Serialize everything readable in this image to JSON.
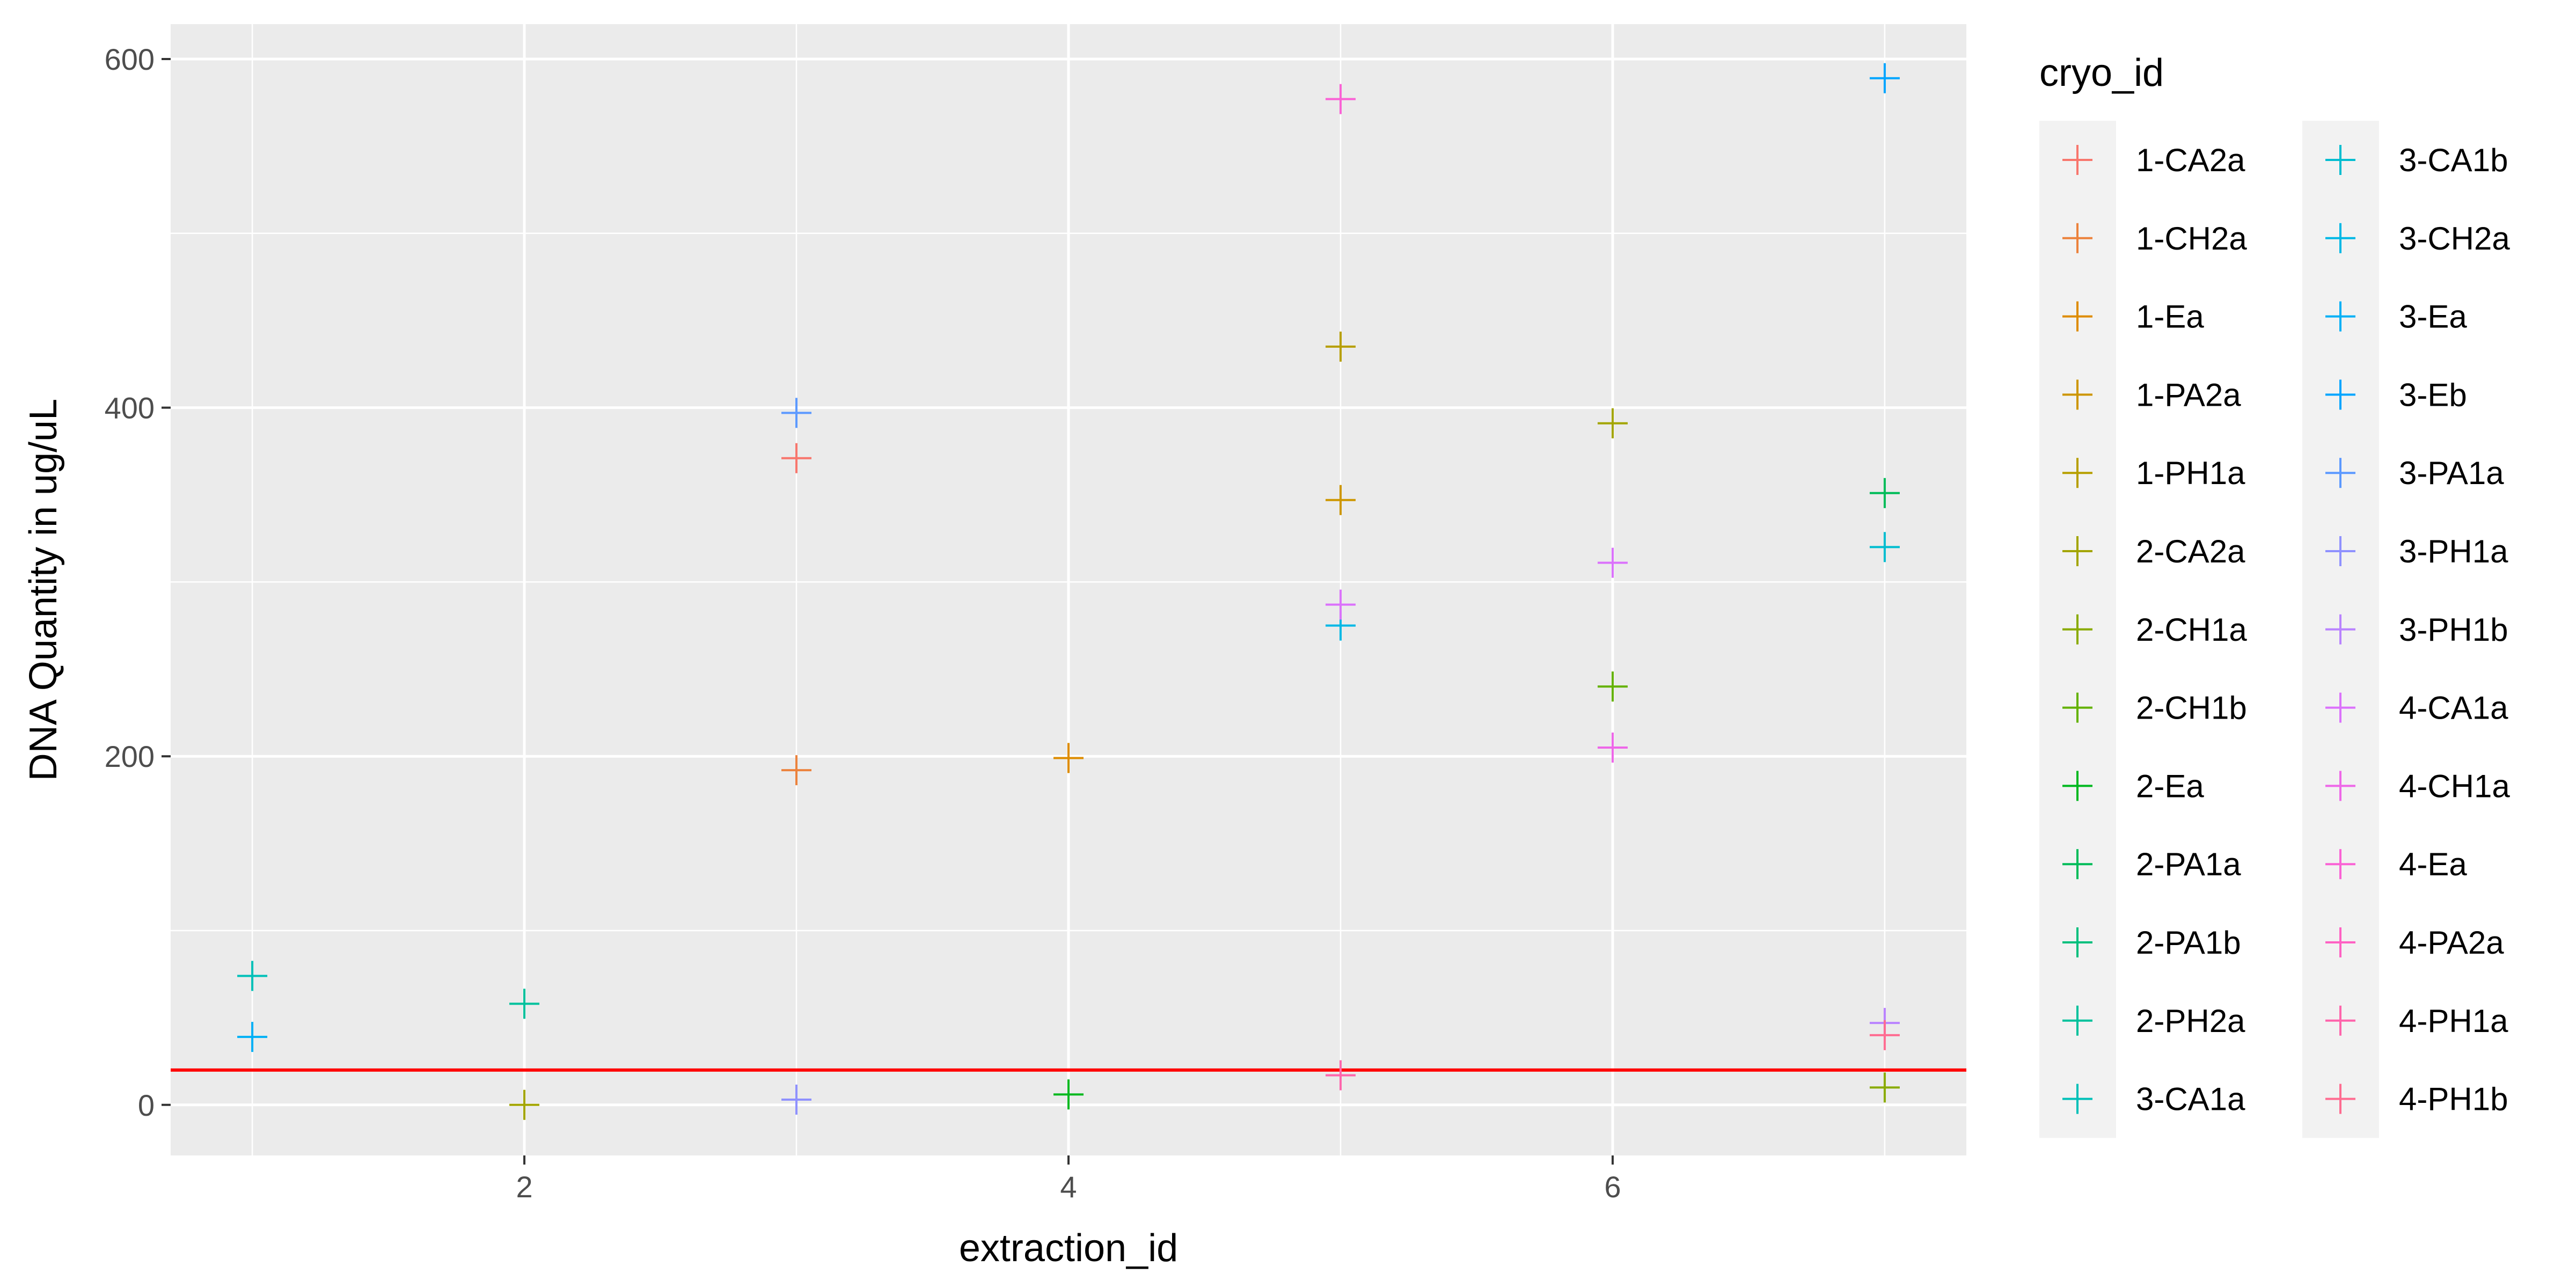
{
  "chart_data": {
    "type": "scatter",
    "title": "",
    "xlabel": "extraction_id",
    "ylabel": "DNA Quantity in ug/uL",
    "xlim": [
      0.7,
      7.3
    ],
    "ylim": [
      -29,
      620
    ],
    "xticks": [
      2,
      4,
      6
    ],
    "yticks": [
      0,
      200,
      400,
      600
    ],
    "grid": true,
    "hline": {
      "y": 20,
      "color": "#ff0000"
    },
    "legend": {
      "title": "cryo_id",
      "position": "right",
      "columns": 2
    },
    "series": [
      {
        "name": "1-CA2a",
        "color": "#F8766D",
        "points": [
          [
            3,
            371
          ]
        ]
      },
      {
        "name": "1-CH2a",
        "color": "#EC823C",
        "points": [
          [
            3,
            192
          ]
        ]
      },
      {
        "name": "1-Ea",
        "color": "#DE8C00",
        "points": [
          [
            4,
            199
          ]
        ]
      },
      {
        "name": "1-PA2a",
        "color": "#CD9600",
        "points": [
          [
            5,
            347
          ]
        ]
      },
      {
        "name": "1-PH1a",
        "color": "#B79F00",
        "points": [
          [
            5,
            435
          ]
        ]
      },
      {
        "name": "2-CA2a",
        "color": "#A3A500",
        "points": [
          [
            2,
            0
          ],
          [
            6,
            391
          ]
        ]
      },
      {
        "name": "2-CH1a",
        "color": "#8AAB00",
        "points": [
          [
            7,
            10
          ]
        ]
      },
      {
        "name": "2-CH1b",
        "color": "#64B200",
        "points": [
          [
            6,
            240
          ]
        ]
      },
      {
        "name": "2-Ea",
        "color": "#00B81F",
        "points": [
          [
            4,
            6
          ]
        ]
      },
      {
        "name": "2-PA1a",
        "color": "#00BC59",
        "points": [
          [
            7,
            351
          ]
        ]
      },
      {
        "name": "2-PA1b",
        "color": "#00BF7D",
        "points": []
      },
      {
        "name": "2-PH2a",
        "color": "#00C19C",
        "points": [
          [
            2,
            58
          ]
        ]
      },
      {
        "name": "3-CA1a",
        "color": "#00C0B8",
        "points": [
          [
            1,
            74
          ]
        ]
      },
      {
        "name": "3-CA1b",
        "color": "#00BDD0",
        "points": [
          [
            7,
            320
          ]
        ]
      },
      {
        "name": "3-CH2a",
        "color": "#00B8E5",
        "points": [
          [
            5,
            275
          ]
        ]
      },
      {
        "name": "3-Ea",
        "color": "#00B0F6",
        "points": [
          [
            1,
            39
          ]
        ]
      },
      {
        "name": "3-Eb",
        "color": "#00A5FF",
        "points": [
          [
            7,
            589
          ]
        ]
      },
      {
        "name": "3-PA1a",
        "color": "#5C99FF",
        "points": [
          [
            3,
            397
          ]
        ]
      },
      {
        "name": "3-PH1a",
        "color": "#8F91FF",
        "points": [
          [
            3,
            3
          ]
        ]
      },
      {
        "name": "3-PH1b",
        "color": "#B983FF",
        "points": [
          [
            7,
            47
          ]
        ]
      },
      {
        "name": "4-CA1a",
        "color": "#DB72FB",
        "points": [
          [
            5,
            287
          ],
          [
            6,
            311
          ]
        ]
      },
      {
        "name": "4-CH1a",
        "color": "#EE67E8",
        "points": [
          [
            6,
            205
          ]
        ]
      },
      {
        "name": "4-Ea",
        "color": "#FA62D5",
        "points": [
          [
            5,
            577
          ]
        ]
      },
      {
        "name": "4-PA2a",
        "color": "#FF61C3",
        "points": []
      },
      {
        "name": "4-PH1a",
        "color": "#FF65AC",
        "points": [
          [
            5,
            17
          ]
        ]
      },
      {
        "name": "4-PH1b",
        "color": "#FF6C91",
        "points": [
          [
            7,
            40
          ]
        ]
      }
    ]
  }
}
